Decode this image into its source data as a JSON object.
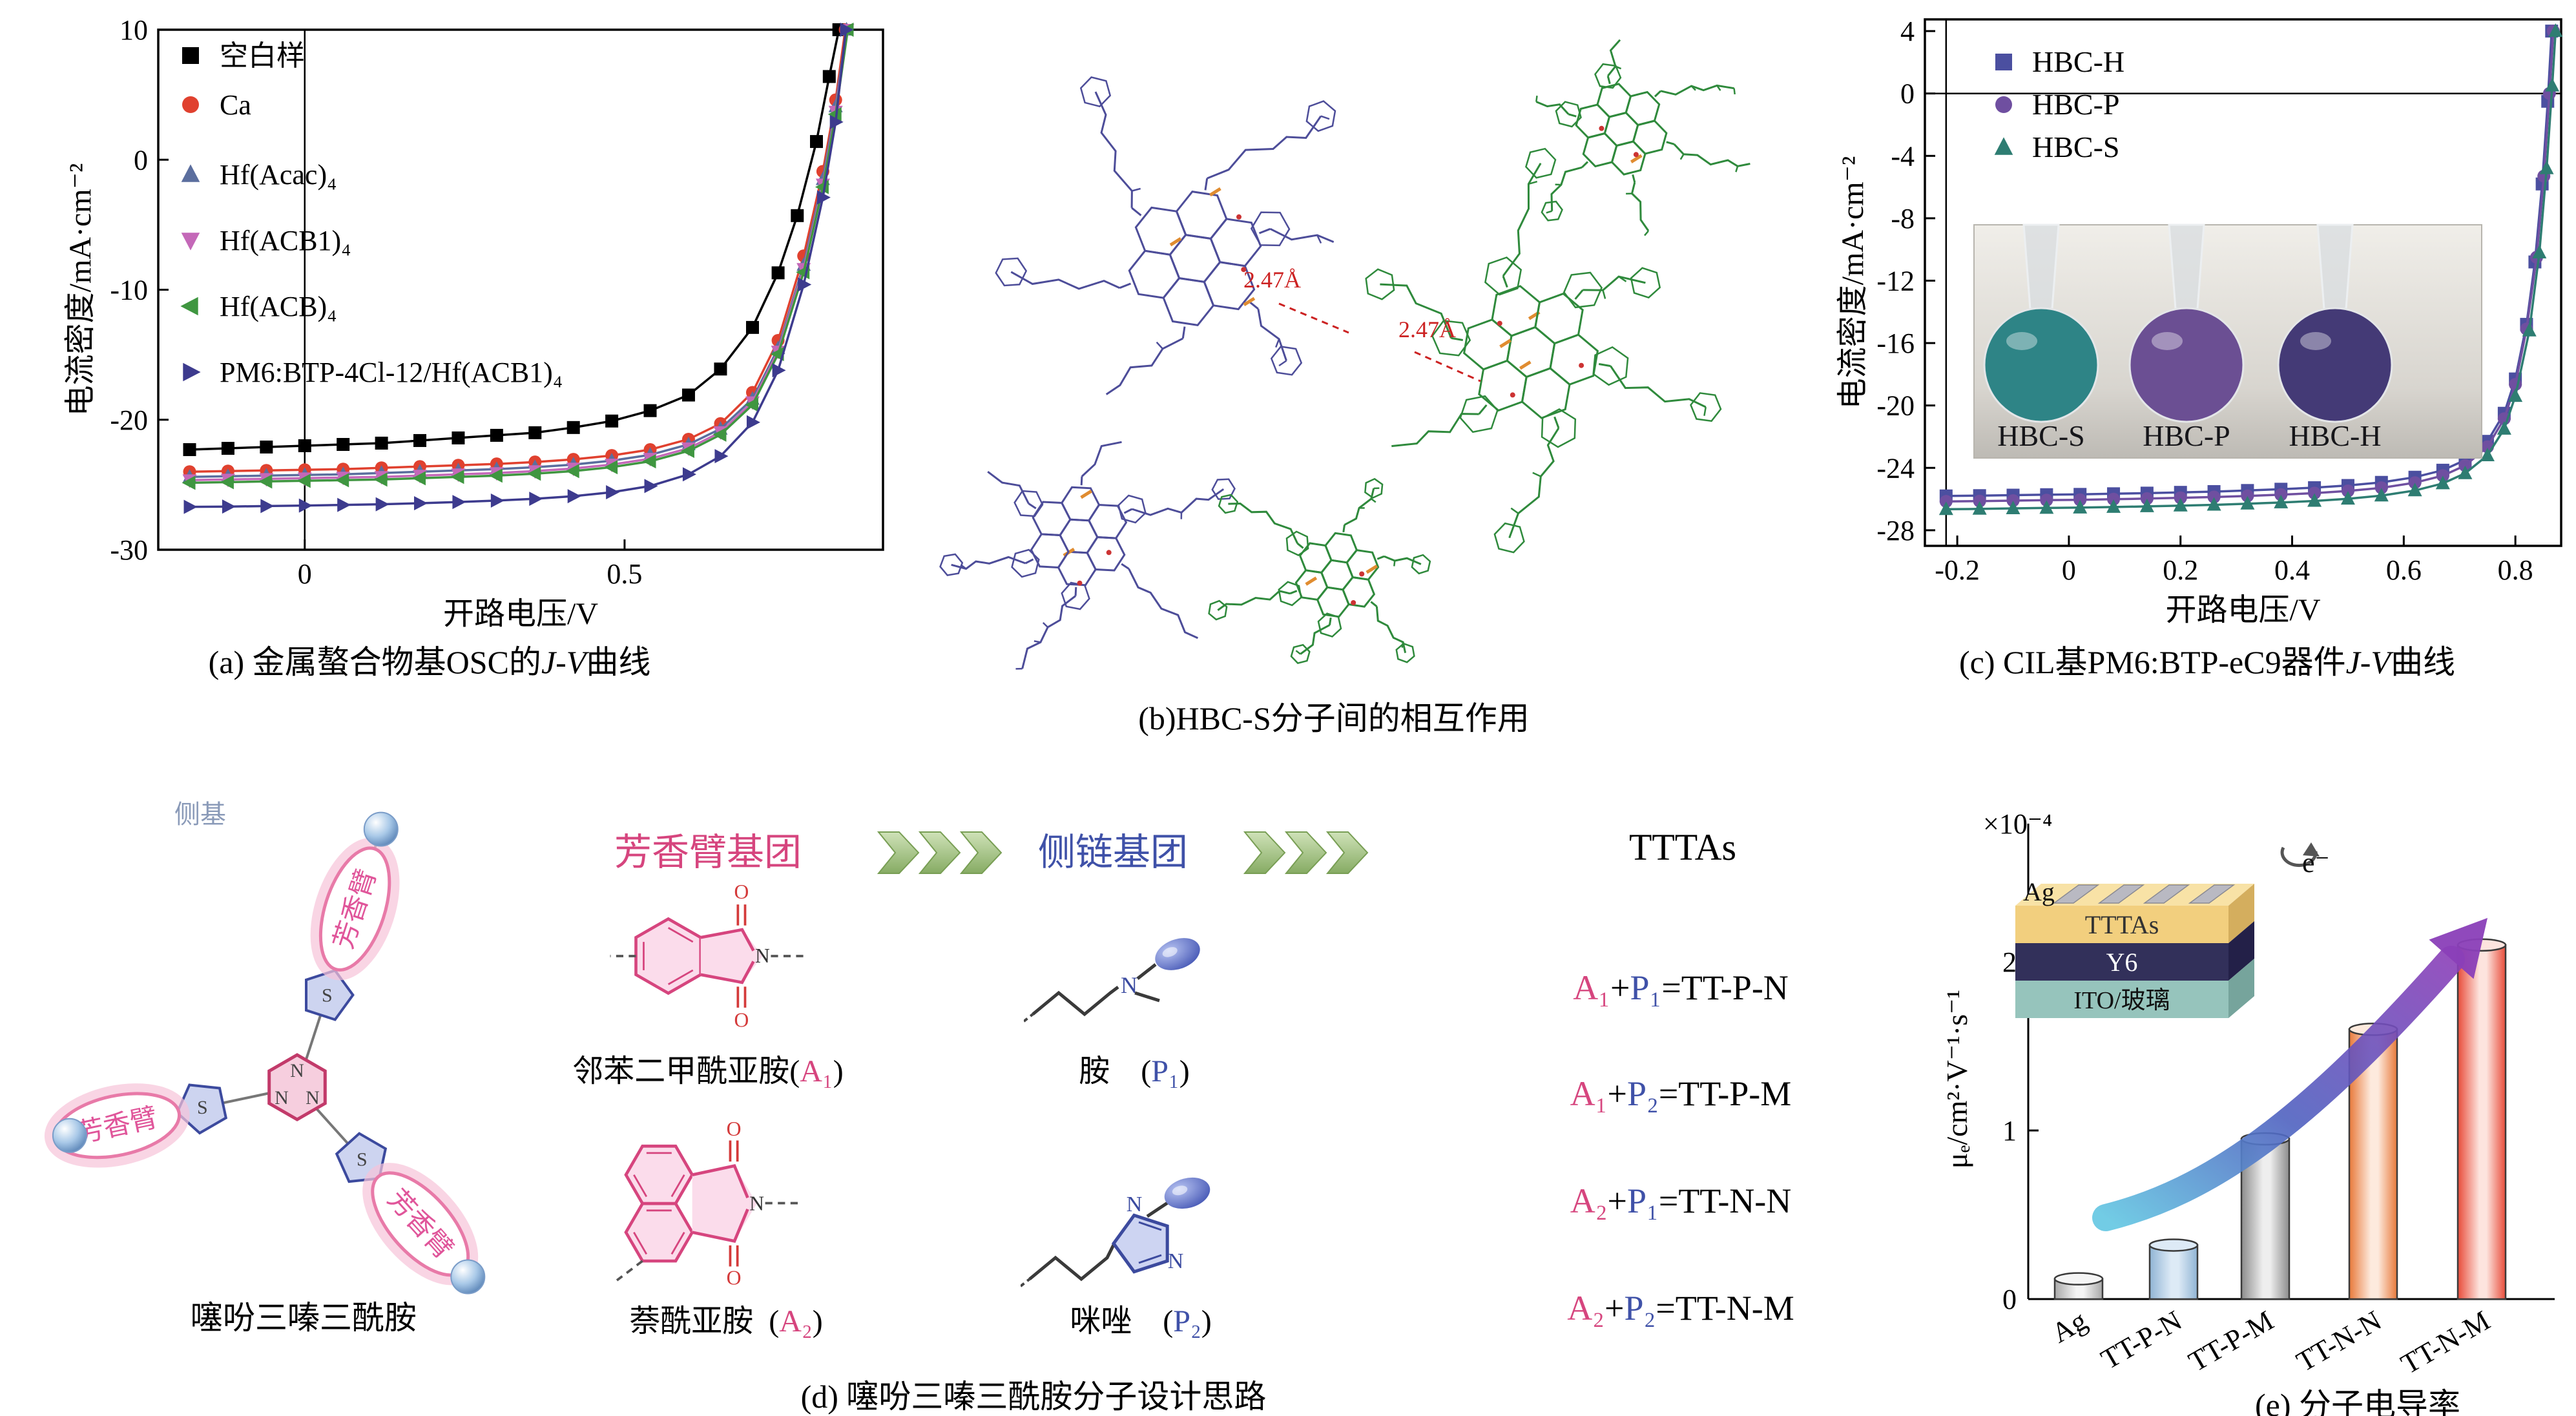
{
  "panels": {
    "a": {
      "caption": {
        "pre": "(a) 金属螯合物基OSC的",
        "italic": "J-V",
        "post": "曲线"
      }
    },
    "b": {
      "caption": "(b)HBC-S分子间的相互作用",
      "distance_labels": [
        "2.47Å",
        "2.47Å"
      ],
      "colors": {
        "mol1": "#4d4d99",
        "mol2": "#2f8a3c",
        "hetero": "#e08c30",
        "annotation": "#cc2222"
      }
    },
    "c": {
      "caption": {
        "pre": "(c) CIL基PM6:BTP-eC9器件",
        "italic": "J-V",
        "post": "曲线"
      },
      "inset": {
        "flask_labels": [
          "HBC-S",
          "HBC-P",
          "HBC-H"
        ],
        "liquid_colors": [
          "#2e8486",
          "#6b4f93",
          "#443a76"
        ]
      }
    },
    "d": {
      "caption": "(d) 噻吩三嗪三酰胺分子设计思路",
      "molecule": {
        "caption": "噻吩三嗪三酰胺",
        "side_group_label": "侧基",
        "arm_label": "芳香臂",
        "atom_n": "N",
        "atom_s": "S"
      },
      "col_arom_title": "芳香臂基团",
      "col_side_title": "侧链基团",
      "col_tttas_title": "TTTAs",
      "structures": {
        "a1": {
          "pre": "邻苯二甲酰亚胺(",
          "sym": "A₁",
          "post": ")"
        },
        "a2": {
          "pre": "萘酰亚胺  (",
          "sym": "A₂",
          "post": ")"
        },
        "p1": {
          "pre": "胺    (",
          "sym": "P₁",
          "post": ")"
        },
        "p2": {
          "pre": "咪唑    (",
          "sym": "P₂",
          "post": ")"
        }
      },
      "formulas": [
        {
          "a": "A₁",
          "plus": "+",
          "p": "P₁",
          "rest": "=TT-P-N"
        },
        {
          "a": "A₁",
          "plus": "+",
          "p": "P₂",
          "rest": "=TT-P-M"
        },
        {
          "a": "A₂",
          "plus": "+",
          "p": "P₁",
          "rest": "=TT-N-N"
        },
        {
          "a": "A₂",
          "plus": "+",
          "p": "P₂",
          "rest": "=TT-N-M"
        }
      ],
      "colors": {
        "magenta": "#d6457e",
        "blue": "#3f51a8"
      }
    },
    "e": {
      "caption": "(e) 分子电导率",
      "inset": {
        "ag": "Ag",
        "tttas": "TTTAs",
        "y6": "Y6",
        "ito": "ITO/玻璃",
        "electron": "e⁻"
      }
    }
  },
  "chart_data": [
    {
      "id": "a",
      "type": "line",
      "xlabel": "开路电压/V",
      "ylabel": "电流密度/mA·cm⁻²",
      "xlim": [
        -0.229,
        0.904
      ],
      "ylim": [
        -30,
        10
      ],
      "xticks": [
        0,
        0.5
      ],
      "yticks": [
        10,
        0,
        -10,
        -20,
        -30
      ],
      "zero_vline": 0,
      "legend_position": "top-left",
      "series": [
        {
          "name": "空白样",
          "color": "#000000",
          "marker": "square",
          "points": [
            [
              -0.18,
              -22.3
            ],
            [
              -0.12,
              -22.2
            ],
            [
              -0.06,
              -22.1
            ],
            [
              0,
              -22.0
            ],
            [
              0.06,
              -21.9
            ],
            [
              0.12,
              -21.8
            ],
            [
              0.18,
              -21.6
            ],
            [
              0.24,
              -21.4
            ],
            [
              0.3,
              -21.2
            ],
            [
              0.36,
              -21.0
            ],
            [
              0.42,
              -20.6
            ],
            [
              0.48,
              -20.1
            ],
            [
              0.54,
              -19.3
            ],
            [
              0.6,
              -18.1
            ],
            [
              0.65,
              -16.1
            ],
            [
              0.7,
              -12.9
            ],
            [
              0.74,
              -8.7
            ],
            [
              0.77,
              -4.3
            ],
            [
              0.8,
              1.4
            ],
            [
              0.82,
              6.4
            ],
            [
              0.835,
              10
            ]
          ]
        },
        {
          "name": "Ca",
          "color": "#e0412f",
          "marker": "circle",
          "points": [
            [
              -0.18,
              -24.0
            ],
            [
              -0.12,
              -23.95
            ],
            [
              -0.06,
              -23.9
            ],
            [
              0,
              -23.85
            ],
            [
              0.06,
              -23.8
            ],
            [
              0.12,
              -23.7
            ],
            [
              0.18,
              -23.6
            ],
            [
              0.24,
              -23.5
            ],
            [
              0.3,
              -23.4
            ],
            [
              0.36,
              -23.25
            ],
            [
              0.42,
              -23.05
            ],
            [
              0.48,
              -22.75
            ],
            [
              0.54,
              -22.3
            ],
            [
              0.6,
              -21.5
            ],
            [
              0.65,
              -20.3
            ],
            [
              0.7,
              -17.9
            ],
            [
              0.74,
              -13.9
            ],
            [
              0.78,
              -7.4
            ],
            [
              0.81,
              -0.9
            ],
            [
              0.83,
              4.6
            ],
            [
              0.845,
              10
            ]
          ]
        },
        {
          "name": "Hf(Acac)₄",
          "color": "#5b6e9e",
          "marker": "triangle-up",
          "points": [
            [
              -0.18,
              -24.4
            ],
            [
              -0.12,
              -24.35
            ],
            [
              -0.06,
              -24.3
            ],
            [
              0,
              -24.25
            ],
            [
              0.06,
              -24.2
            ],
            [
              0.12,
              -24.1
            ],
            [
              0.18,
              -24.0
            ],
            [
              0.24,
              -23.9
            ],
            [
              0.3,
              -23.8
            ],
            [
              0.36,
              -23.65
            ],
            [
              0.42,
              -23.45
            ],
            [
              0.48,
              -23.15
            ],
            [
              0.54,
              -22.7
            ],
            [
              0.6,
              -21.9
            ],
            [
              0.65,
              -20.7
            ],
            [
              0.7,
              -18.4
            ],
            [
              0.74,
              -14.5
            ],
            [
              0.78,
              -8.1
            ],
            [
              0.81,
              -1.5
            ],
            [
              0.83,
              4.1
            ],
            [
              0.847,
              10
            ]
          ]
        },
        {
          "name": "Hf(ACB1)₄",
          "color": "#c468b8",
          "marker": "triangle-down",
          "points": [
            [
              -0.18,
              -24.65
            ],
            [
              -0.12,
              -24.6
            ],
            [
              -0.06,
              -24.55
            ],
            [
              0,
              -24.5
            ],
            [
              0.06,
              -24.45
            ],
            [
              0.12,
              -24.4
            ],
            [
              0.18,
              -24.3
            ],
            [
              0.24,
              -24.2
            ],
            [
              0.3,
              -24.1
            ],
            [
              0.36,
              -23.95
            ],
            [
              0.42,
              -23.75
            ],
            [
              0.48,
              -23.45
            ],
            [
              0.54,
              -23.0
            ],
            [
              0.6,
              -22.2
            ],
            [
              0.65,
              -20.95
            ],
            [
              0.7,
              -18.65
            ],
            [
              0.74,
              -14.75
            ],
            [
              0.78,
              -8.4
            ],
            [
              0.81,
              -1.9
            ],
            [
              0.83,
              3.7
            ],
            [
              0.848,
              10
            ]
          ]
        },
        {
          "name": "Hf(ACB)₄",
          "color": "#3f9640",
          "marker": "triangle-left",
          "points": [
            [
              -0.18,
              -24.85
            ],
            [
              -0.12,
              -24.8
            ],
            [
              -0.06,
              -24.75
            ],
            [
              0,
              -24.7
            ],
            [
              0.06,
              -24.65
            ],
            [
              0.12,
              -24.6
            ],
            [
              0.18,
              -24.5
            ],
            [
              0.24,
              -24.4
            ],
            [
              0.3,
              -24.3
            ],
            [
              0.36,
              -24.15
            ],
            [
              0.42,
              -23.95
            ],
            [
              0.48,
              -23.65
            ],
            [
              0.54,
              -23.2
            ],
            [
              0.6,
              -22.4
            ],
            [
              0.65,
              -21.15
            ],
            [
              0.7,
              -18.85
            ],
            [
              0.74,
              -14.95
            ],
            [
              0.78,
              -8.65
            ],
            [
              0.81,
              -2.1
            ],
            [
              0.83,
              3.5
            ],
            [
              0.849,
              10
            ]
          ]
        },
        {
          "name": "PM6:BTP-4Cl-12/Hf(ACB1)₄",
          "color": "#3d3b8e",
          "marker": "triangle-right",
          "points": [
            [
              -0.18,
              -26.7
            ],
            [
              -0.12,
              -26.68
            ],
            [
              -0.06,
              -26.64
            ],
            [
              0,
              -26.6
            ],
            [
              0.06,
              -26.55
            ],
            [
              0.12,
              -26.5
            ],
            [
              0.18,
              -26.42
            ],
            [
              0.24,
              -26.33
            ],
            [
              0.3,
              -26.22
            ],
            [
              0.36,
              -26.08
            ],
            [
              0.42,
              -25.88
            ],
            [
              0.48,
              -25.58
            ],
            [
              0.54,
              -25.1
            ],
            [
              0.6,
              -24.2
            ],
            [
              0.65,
              -22.8
            ],
            [
              0.7,
              -20.2
            ],
            [
              0.74,
              -16.2
            ],
            [
              0.78,
              -9.6
            ],
            [
              0.81,
              -2.9
            ],
            [
              0.83,
              2.9
            ],
            [
              0.846,
              10
            ]
          ]
        }
      ]
    },
    {
      "id": "c",
      "type": "line",
      "xlabel": "开路电压/V",
      "ylabel": "电流密度/mA·cm⁻²",
      "xlim": [
        -0.258,
        0.882
      ],
      "ylim": [
        -29,
        4.75
      ],
      "xticks": [
        -0.2,
        0,
        0.2,
        0.4,
        0.6,
        0.8
      ],
      "yticks": [
        4,
        0,
        -4,
        -8,
        -12,
        -16,
        -20,
        -24,
        -28
      ],
      "zero_vline": -0.22,
      "zero_hline": 0,
      "legend_position": "top-left",
      "series": [
        {
          "name": "HBC-H",
          "color": "#4b4fa0",
          "marker": "square",
          "points": [
            [
              -0.22,
              -25.8
            ],
            [
              -0.16,
              -25.78
            ],
            [
              -0.1,
              -25.75
            ],
            [
              -0.04,
              -25.72
            ],
            [
              0.02,
              -25.7
            ],
            [
              0.08,
              -25.66
            ],
            [
              0.14,
              -25.62
            ],
            [
              0.2,
              -25.57
            ],
            [
              0.26,
              -25.52
            ],
            [
              0.32,
              -25.45
            ],
            [
              0.38,
              -25.37
            ],
            [
              0.44,
              -25.27
            ],
            [
              0.5,
              -25.13
            ],
            [
              0.56,
              -24.93
            ],
            [
              0.62,
              -24.6
            ],
            [
              0.67,
              -24.15
            ],
            [
              0.71,
              -23.5
            ],
            [
              0.75,
              -22.3
            ],
            [
              0.78,
              -20.5
            ],
            [
              0.8,
              -18.3
            ],
            [
              0.82,
              -14.8
            ],
            [
              0.835,
              -10.8
            ],
            [
              0.848,
              -5.8
            ],
            [
              0.858,
              -0.5
            ],
            [
              0.865,
              4
            ]
          ]
        },
        {
          "name": "HBC-P",
          "color": "#6f4fa0",
          "marker": "circle",
          "points": [
            [
              -0.22,
              -26.15
            ],
            [
              -0.16,
              -26.13
            ],
            [
              -0.1,
              -26.1
            ],
            [
              -0.04,
              -26.07
            ],
            [
              0.02,
              -26.05
            ],
            [
              0.08,
              -26.01
            ],
            [
              0.14,
              -25.97
            ],
            [
              0.2,
              -25.92
            ],
            [
              0.26,
              -25.87
            ],
            [
              0.32,
              -25.8
            ],
            [
              0.38,
              -25.72
            ],
            [
              0.44,
              -25.62
            ],
            [
              0.5,
              -25.48
            ],
            [
              0.56,
              -25.28
            ],
            [
              0.62,
              -24.95
            ],
            [
              0.67,
              -24.5
            ],
            [
              0.71,
              -23.85
            ],
            [
              0.75,
              -22.65
            ],
            [
              0.78,
              -20.85
            ],
            [
              0.8,
              -18.65
            ],
            [
              0.82,
              -15.1
            ],
            [
              0.838,
              -10.5
            ],
            [
              0.851,
              -5.3
            ],
            [
              0.861,
              0
            ],
            [
              0.868,
              4
            ]
          ]
        },
        {
          "name": "HBC-S",
          "color": "#2e7d72",
          "marker": "triangle-up",
          "points": [
            [
              -0.22,
              -26.65
            ],
            [
              -0.16,
              -26.63
            ],
            [
              -0.1,
              -26.6
            ],
            [
              -0.04,
              -26.57
            ],
            [
              0.02,
              -26.55
            ],
            [
              0.08,
              -26.51
            ],
            [
              0.14,
              -26.47
            ],
            [
              0.2,
              -26.42
            ],
            [
              0.26,
              -26.37
            ],
            [
              0.32,
              -26.3
            ],
            [
              0.38,
              -26.22
            ],
            [
              0.44,
              -26.12
            ],
            [
              0.5,
              -25.98
            ],
            [
              0.56,
              -25.78
            ],
            [
              0.62,
              -25.45
            ],
            [
              0.67,
              -25.0
            ],
            [
              0.71,
              -24.35
            ],
            [
              0.75,
              -23.2
            ],
            [
              0.78,
              -21.5
            ],
            [
              0.8,
              -19.4
            ],
            [
              0.825,
              -15.2
            ],
            [
              0.843,
              -10.2
            ],
            [
              0.856,
              -4.8
            ],
            [
              0.866,
              0.5
            ],
            [
              0.872,
              4
            ]
          ]
        }
      ]
    },
    {
      "id": "e",
      "type": "bar",
      "ylabel": "μₑ/cm²·V⁻¹·s⁻¹",
      "multiplier": "×10⁻⁴",
      "categories": [
        "Ag",
        "TT-P-N",
        "TT-P-M",
        "TT-N-N",
        "TT-N-M"
      ],
      "values": [
        0.12,
        0.32,
        0.95,
        1.6,
        2.1
      ],
      "ylim": [
        0,
        2.6
      ],
      "yticks": [
        0,
        1,
        2
      ],
      "bar_colors": [
        [
          "#f5f5f5",
          "#a8a8a8"
        ],
        [
          "#ddeaf6",
          "#90b4d4"
        ],
        [
          "#eeeeee",
          "#8c8c8c"
        ],
        [
          "#fdeadd",
          "#e8793a"
        ],
        [
          "#fde4de",
          "#e84c3a"
        ]
      ],
      "arrow_colors": [
        "#62c6e2",
        "#4f62c0",
        "#8a3fb8"
      ]
    }
  ]
}
